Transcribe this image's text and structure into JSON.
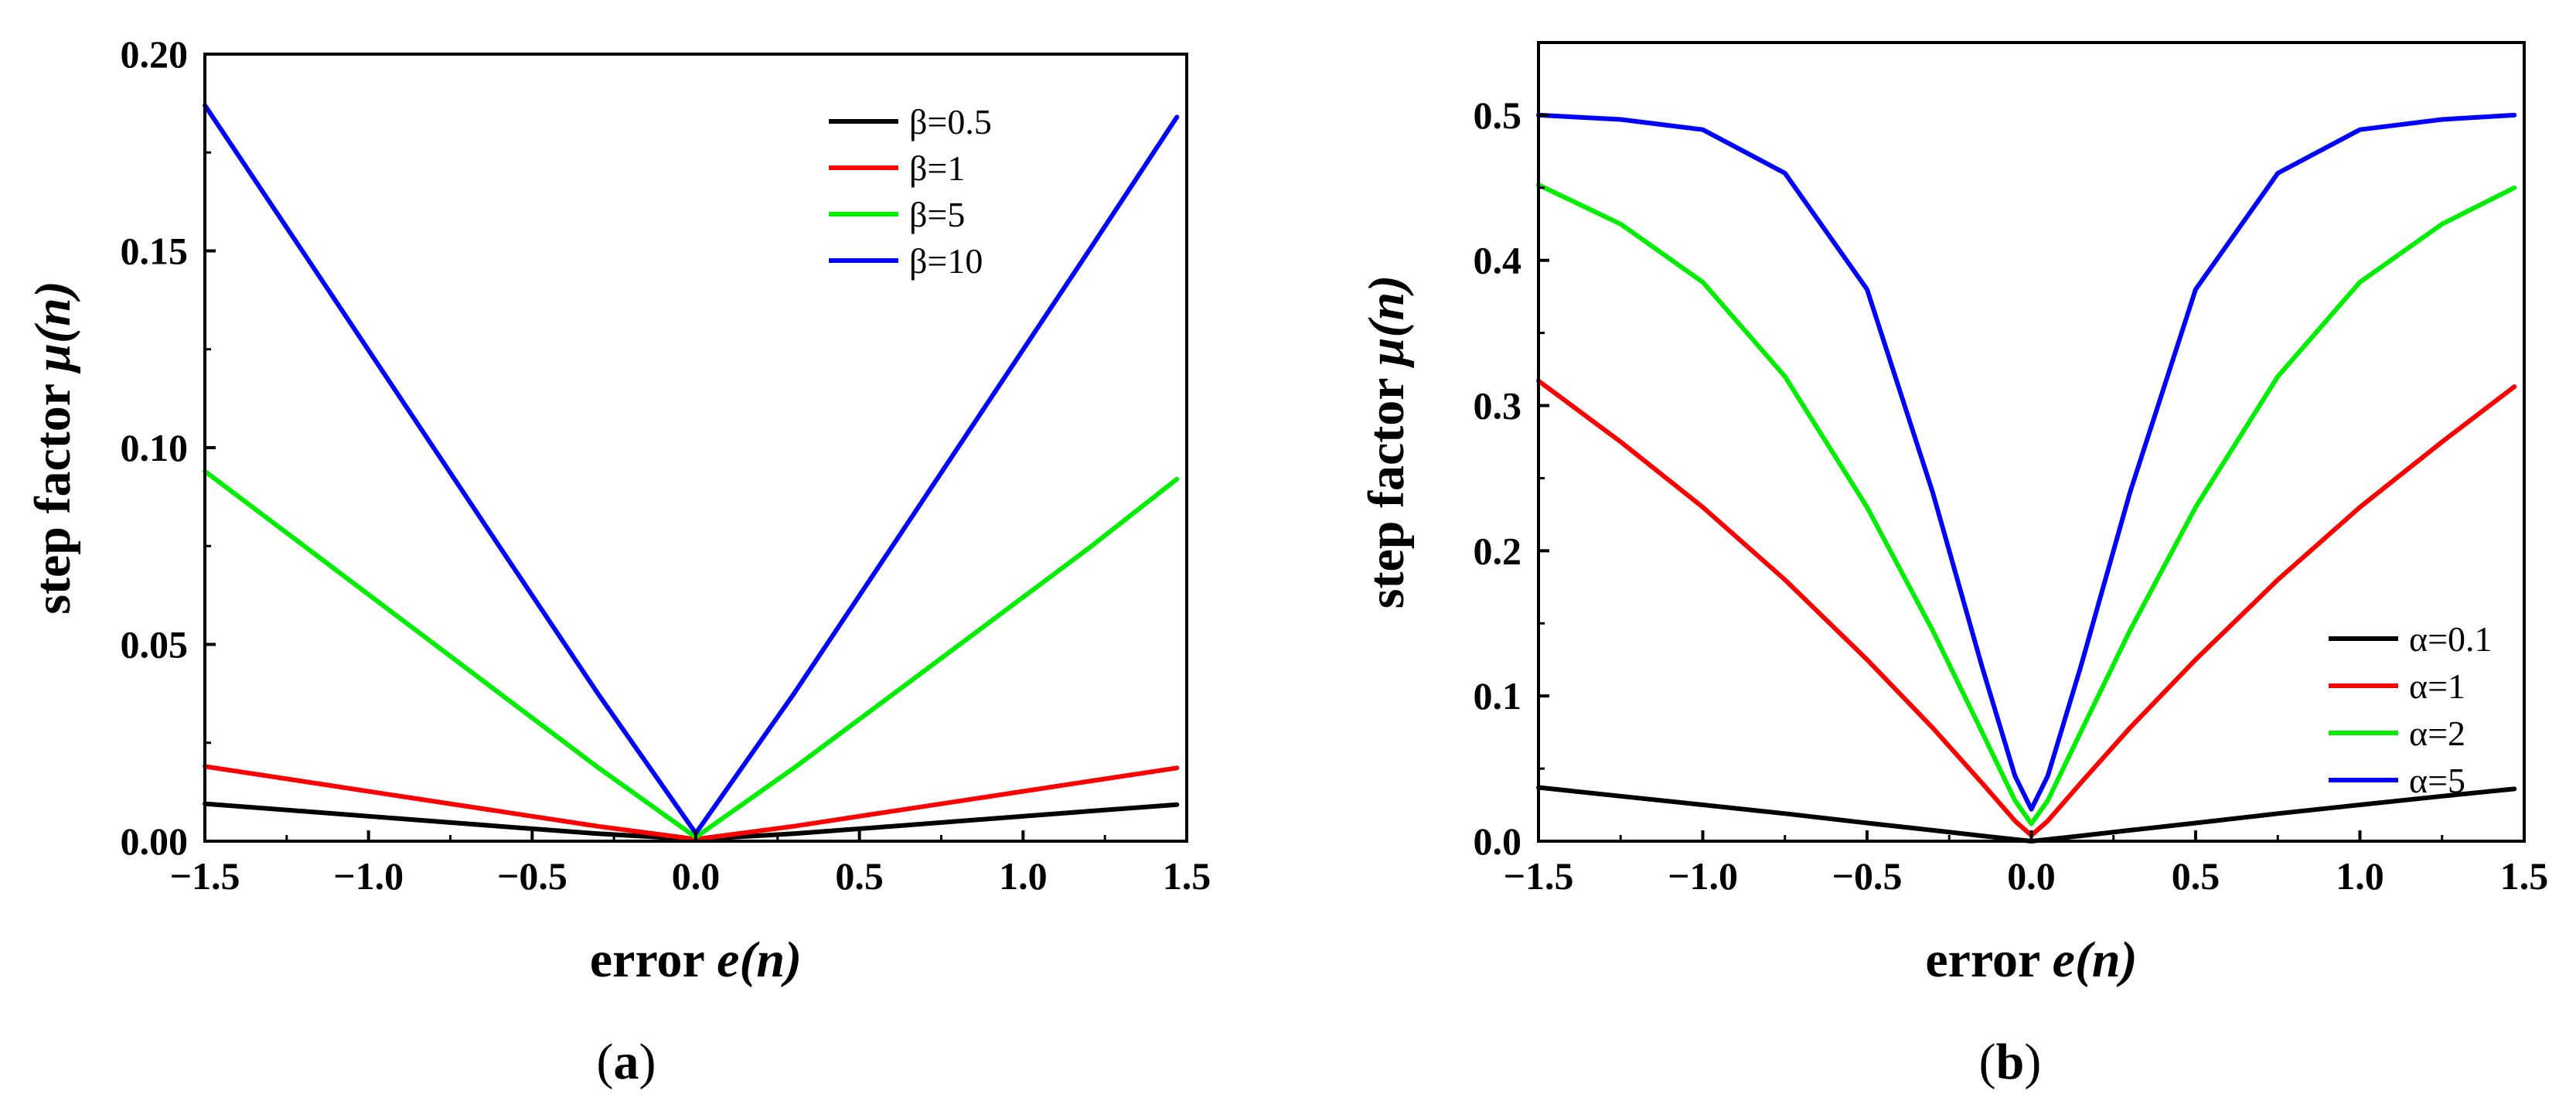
{
  "chart_data": [
    {
      "type": "line",
      "panel": "(a)",
      "xlabel": "error e(n)",
      "ylabel": "step factor μ(n)",
      "xlim": [
        -1.5,
        1.5
      ],
      "ylim": [
        0,
        0.2
      ],
      "xticks": [
        -1.5,
        -1.0,
        -0.5,
        0.0,
        0.5,
        1.0,
        1.5
      ],
      "xtick_labels": [
        "−1.5",
        "−1.0",
        "−0.5",
        "0.0",
        "0.5",
        "1.0",
        "1.5"
      ],
      "yticks": [
        0,
        0.05,
        0.1,
        0.15,
        0.2
      ],
      "ytick_labels": [
        "0.00",
        "0.05",
        "0.10",
        "0.15",
        "0.20"
      ],
      "legend_position": "top-right",
      "x": [
        -1.5,
        -1.2,
        -0.9,
        -0.6,
        -0.3,
        0.0,
        0.3,
        0.6,
        0.9,
        1.2,
        1.47
      ],
      "series": [
        {
          "name": "β=0.5",
          "color": "#000000",
          "values": [
            0.0095,
            0.0076,
            0.0057,
            0.0038,
            0.0019,
            0.0005,
            0.0019,
            0.0038,
            0.0057,
            0.0076,
            0.0093
          ]
        },
        {
          "name": "β=1",
          "color": "#ff0000",
          "values": [
            0.019,
            0.0152,
            0.0114,
            0.0076,
            0.0038,
            0.0005,
            0.0038,
            0.0076,
            0.0114,
            0.0152,
            0.0186
          ]
        },
        {
          "name": "β=5",
          "color": "#00ee00",
          "values": [
            0.094,
            0.0752,
            0.0564,
            0.0376,
            0.0188,
            0.001,
            0.0186,
            0.0372,
            0.0558,
            0.0744,
            0.092
          ]
        },
        {
          "name": "β=10",
          "color": "#0000ff",
          "values": [
            0.187,
            0.1497,
            0.1123,
            0.0749,
            0.0376,
            0.002,
            0.0375,
            0.0749,
            0.1124,
            0.1499,
            0.184
          ]
        }
      ]
    },
    {
      "type": "line",
      "panel": "(b)",
      "xlabel": "error e(n)",
      "ylabel": "step factor μ(n)",
      "xlim": [
        -1.5,
        1.5
      ],
      "ylim": [
        0,
        0.55
      ],
      "xticks": [
        -1.5,
        -1.0,
        -0.5,
        0.0,
        0.5,
        1.0,
        1.5
      ],
      "xtick_labels": [
        "−1.5",
        "−1.0",
        "−0.5",
        "0.0",
        "0.5",
        "1.0",
        "1.5"
      ],
      "yticks": [
        0,
        0.1,
        0.2,
        0.3,
        0.4,
        0.5
      ],
      "ytick_labels": [
        "0.0",
        "0.1",
        "0.2",
        "0.3",
        "0.4",
        "0.5"
      ],
      "legend_position": "bottom-right",
      "x": [
        -1.5,
        -1.25,
        -1.0,
        -0.75,
        -0.5,
        -0.3,
        -0.15,
        -0.05,
        0.0,
        0.05,
        0.15,
        0.3,
        0.5,
        0.75,
        1.0,
        1.25,
        1.47
      ],
      "series": [
        {
          "name": "α=0.1",
          "color": "#000000",
          "values": [
            0.037,
            0.031,
            0.025,
            0.019,
            0.0125,
            0.0075,
            0.0037,
            0.0012,
            0.0,
            0.0012,
            0.0037,
            0.0075,
            0.0125,
            0.019,
            0.025,
            0.031,
            0.036
          ]
        },
        {
          "name": "α=1",
          "color": "#ff0000",
          "values": [
            0.317,
            0.275,
            0.23,
            0.18,
            0.125,
            0.078,
            0.04,
            0.014,
            0.004,
            0.014,
            0.04,
            0.078,
            0.125,
            0.18,
            0.23,
            0.275,
            0.313
          ]
        },
        {
          "name": "α=2",
          "color": "#00ee00",
          "values": [
            0.452,
            0.425,
            0.385,
            0.32,
            0.23,
            0.145,
            0.075,
            0.028,
            0.012,
            0.028,
            0.075,
            0.145,
            0.23,
            0.32,
            0.385,
            0.425,
            0.45
          ]
        },
        {
          "name": "α=5",
          "color": "#0000ff",
          "values": [
            0.5,
            0.497,
            0.49,
            0.46,
            0.38,
            0.24,
            0.12,
            0.045,
            0.022,
            0.045,
            0.12,
            0.24,
            0.38,
            0.46,
            0.49,
            0.497,
            0.5
          ]
        }
      ]
    }
  ]
}
